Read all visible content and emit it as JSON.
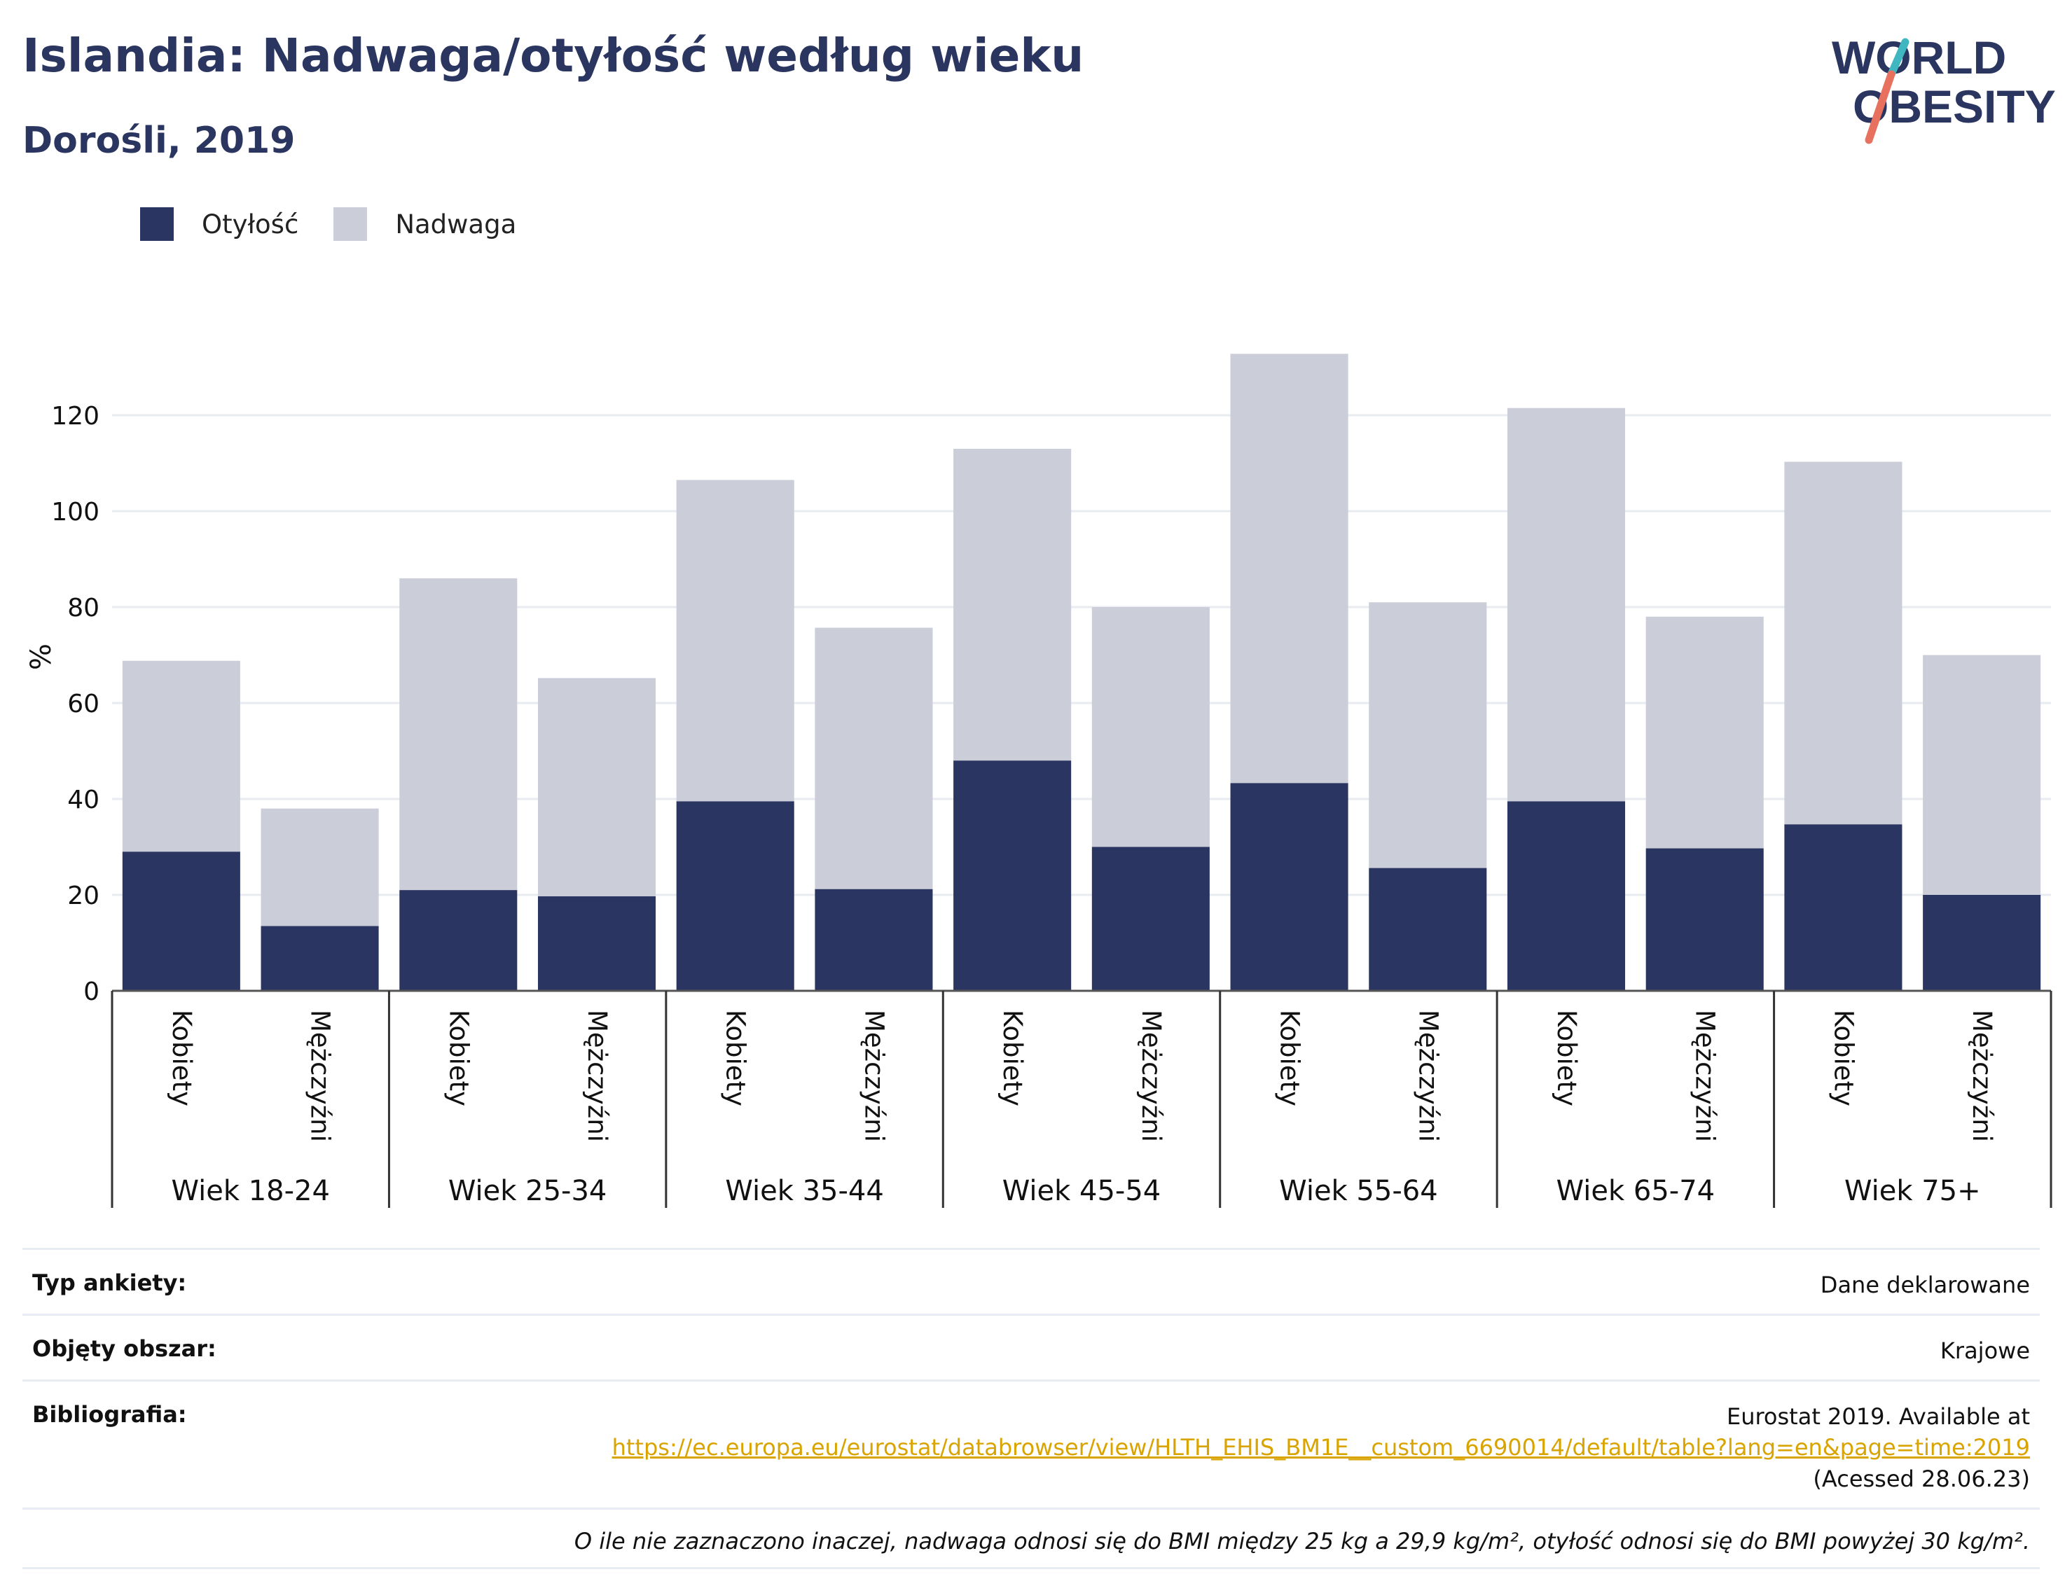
{
  "header": {
    "title": "Islandia: Nadwaga/otyłość według wieku",
    "subtitle": "Dorośli, 2019"
  },
  "logo": {
    "line1": "WORLD",
    "line2": "OBESITY"
  },
  "legend": [
    {
      "label": "Otyłość",
      "color": "#2b3562"
    },
    {
      "label": "Nadwaga",
      "color": "#cbcdd8"
    }
  ],
  "chart_data": {
    "type": "bar",
    "stacked": true,
    "ylabel": "%",
    "ylim": [
      0,
      130
    ],
    "yticks": [
      0,
      20,
      40,
      60,
      80,
      100,
      120
    ],
    "grid": true,
    "legend_position": "top-left",
    "groups": [
      "Wiek 18-24",
      "Wiek 25-34",
      "Wiek 35-44",
      "Wiek 45-54",
      "Wiek 55-64",
      "Wiek 65-74",
      "Wiek 75+"
    ],
    "subcategories": [
      "Kobiety",
      "Mężczyźni"
    ],
    "series": [
      {
        "name": "Otyłość",
        "color": "#2b3562",
        "values": [
          29,
          13.5,
          21,
          19.7,
          39.5,
          21.2,
          48,
          30,
          43.3,
          25.6,
          39.5,
          29.7,
          34.7,
          20
        ]
      },
      {
        "name": "Nadwaga",
        "color": "#cbcdd8",
        "values": [
          39.8,
          24.5,
          65,
          45.5,
          67,
          54.5,
          65,
          50,
          89.5,
          55.4,
          82,
          48.3,
          75.6,
          50
        ]
      }
    ]
  },
  "info": {
    "survey_label": "Typ ankiety:",
    "survey_value": "Dane deklarowane",
    "area_label": "Objęty obszar:",
    "area_value": "Krajowe",
    "bib_label": "Bibliografia:",
    "bib_line1": "Eurostat 2019. Available at",
    "bib_link": "https://ec.europa.eu/eurostat/databrowser/view/HLTH_EHIS_BM1E__custom_6690014/default/table?lang=en&page=time:2019",
    "bib_line3": "(Acessed 28.06.23)",
    "note": "O ile nie zaznaczono inaczej, nadwaga odnosi się do BMI między 25 kg a 29,9 kg/m², otyłość odnosi się do BMI powyżej 30 kg/m²."
  }
}
